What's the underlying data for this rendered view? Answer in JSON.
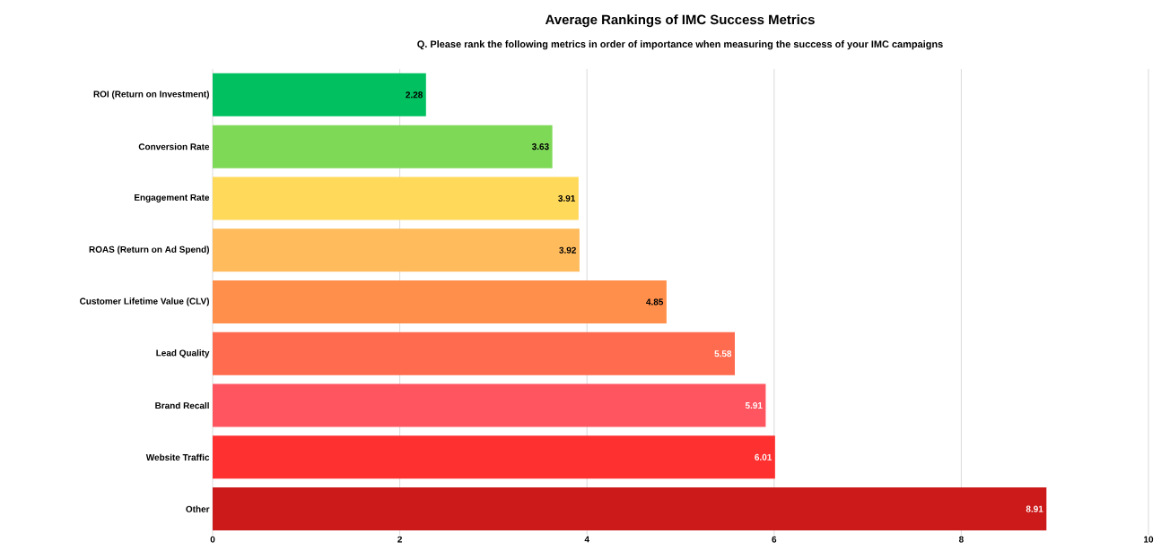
{
  "chart_data": {
    "type": "bar",
    "orientation": "horizontal",
    "title": "Average Rankings of IMC Success Metrics",
    "subtitle": "Q. Please rank the following metrics in order of importance when measuring the success of your IMC campaigns",
    "categories": [
      "ROI (Return on Investment)",
      "Conversion Rate",
      "Engagement Rate",
      "ROAS (Return on Ad Spend)",
      "Customer Lifetime Value (CLV)",
      "Lead Quality",
      "Brand Recall",
      "Website Traffic",
      "Other"
    ],
    "values": [
      2.28,
      3.63,
      3.91,
      3.92,
      4.85,
      5.58,
      5.91,
      6.01,
      8.91
    ],
    "colors": [
      "#00c060",
      "#7ed957",
      "#ffd95a",
      "#ffbb5c",
      "#ff8f4a",
      "#ff6b4f",
      "#ff5560",
      "#ff3030",
      "#cc1a1a"
    ],
    "xlim": [
      0,
      10
    ],
    "xticks": [
      0,
      2,
      4,
      6,
      8,
      10
    ],
    "grid": "x",
    "data_labels": true
  }
}
